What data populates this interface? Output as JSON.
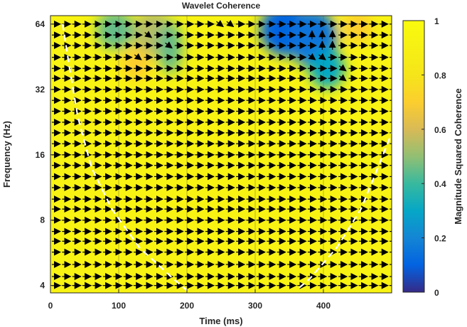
{
  "chart_data": {
    "type": "heatmap",
    "title": "Wavelet Coherence",
    "xlabel": "Time (ms)",
    "ylabel": "Frequency (Hz)",
    "colorbar_label": "Magnitude Squared Coherence",
    "xlim": [
      0,
      500
    ],
    "ylim_hz": [
      3.7,
      70
    ],
    "yscale": "log2",
    "x_ticks": [
      0,
      100,
      200,
      300,
      400
    ],
    "y_ticks": [
      4,
      8,
      16,
      32,
      64
    ],
    "colorbar_range": [
      0,
      1
    ],
    "colorbar_ticks": [
      0,
      0.2,
      0.4,
      0.6,
      0.8,
      1
    ],
    "colorbar_tick_labels": [
      "0",
      "0.2",
      "0.4",
      "0.6",
      "0.8",
      "1"
    ],
    "colormap": "parula",
    "grid": true,
    "background_coherence": 0.93,
    "low_coherence_regions": [
      {
        "t": 95,
        "f": 60,
        "rt": 28,
        "rf_oct": 0.3,
        "coherence": 0.45
      },
      {
        "t": 150,
        "f": 58,
        "rt": 28,
        "rf_oct": 0.35,
        "coherence": 0.55
      },
      {
        "t": 175,
        "f": 50,
        "rt": 18,
        "rf_oct": 0.4,
        "coherence": 0.45
      },
      {
        "t": 125,
        "f": 42,
        "rt": 22,
        "rf_oct": 0.25,
        "coherence": 0.7
      },
      {
        "t": 345,
        "f": 60,
        "rt": 38,
        "rf_oct": 0.4,
        "coherence": 0.1
      },
      {
        "t": 385,
        "f": 55,
        "rt": 35,
        "rf_oct": 0.45,
        "coherence": 0.15
      },
      {
        "t": 405,
        "f": 40,
        "rt": 25,
        "rf_oct": 0.3,
        "coherence": 0.3
      },
      {
        "t": 450,
        "f": 62,
        "rt": 22,
        "rf_oct": 0.25,
        "coherence": 0.7
      }
    ],
    "cone_of_influence": {
      "left": [
        [
          18,
          64
        ],
        [
          28,
          40
        ],
        [
          40,
          24
        ],
        [
          60,
          14
        ],
        [
          90,
          9
        ],
        [
          130,
          6
        ],
        [
          180,
          4.3
        ],
        [
          200,
          3.8
        ]
      ],
      "right": [
        [
          535,
          64
        ],
        [
          525,
          40
        ],
        [
          505,
          22
        ],
        [
          480,
          14
        ],
        [
          455,
          9
        ],
        [
          420,
          6
        ],
        [
          380,
          4.3
        ],
        [
          360,
          3.8
        ]
      ]
    },
    "phase_arrows": {
      "default_direction": "right",
      "rows_hz": [
        4,
        4.4,
        5,
        5.7,
        6.4,
        7.1,
        8,
        9,
        10,
        11.3,
        12.7,
        14.3,
        16,
        18,
        20.2,
        22.6,
        25.4,
        28.5,
        32,
        36,
        40,
        45,
        51,
        57,
        64
      ],
      "exceptions": [
        {
          "t": 370,
          "f": 60,
          "direction": "up"
        },
        {
          "t": 385,
          "f": 60,
          "direction": "up"
        },
        {
          "t": 400,
          "f": 60,
          "direction": "up"
        },
        {
          "t": 385,
          "f": 52,
          "direction": "up"
        },
        {
          "t": 400,
          "f": 52,
          "direction": "up"
        },
        {
          "t": 375,
          "f": 45,
          "direction": "down-right"
        },
        {
          "t": 395,
          "f": 43,
          "direction": "down-right"
        },
        {
          "t": 415,
          "f": 42,
          "direction": "down-right"
        },
        {
          "t": 425,
          "f": 38,
          "direction": "down-right"
        },
        {
          "t": 245,
          "f": 66,
          "direction": "down-right"
        },
        {
          "t": 255,
          "f": 66,
          "direction": "down-right"
        },
        {
          "t": 160,
          "f": 50,
          "direction": "down-right"
        },
        {
          "t": 140,
          "f": 58,
          "direction": "down-right"
        },
        {
          "t": 120,
          "f": 44,
          "direction": "down-right"
        }
      ]
    }
  }
}
